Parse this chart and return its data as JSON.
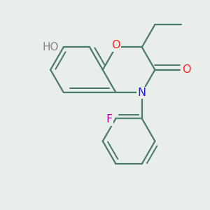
{
  "bg_color": "#eaeeea",
  "bond_color": "#4a7a6a",
  "bond_width": 1.6,
  "dbo": 0.018,
  "atom_colors": {
    "O": "#ff2020",
    "N": "#2020dd",
    "F": "#cc00bb",
    "HO_H": "#888888",
    "HO_O": "#ff2020"
  },
  "font_size": 10.5
}
